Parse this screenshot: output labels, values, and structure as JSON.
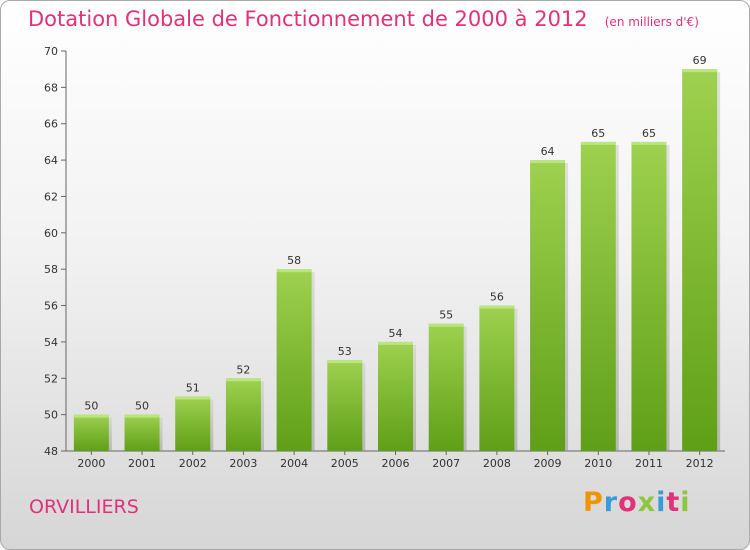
{
  "header": {
    "title": "Dotation Globale de Fonctionnement de 2000 à 2012",
    "unit": "(en milliers d'€)"
  },
  "footer": {
    "town": "ORVILLIERS",
    "logo": "Proxiti"
  },
  "colors": {
    "title": "#e0317a",
    "bar_top": "#9ed14f",
    "bar_bottom": "#5f9f17"
  },
  "chart_data": {
    "type": "bar",
    "title": "Dotation Globale de Fonctionnement de 2000 à 2012",
    "categories": [
      "2000",
      "2001",
      "2002",
      "2003",
      "2004",
      "2005",
      "2006",
      "2007",
      "2008",
      "2009",
      "2010",
      "2011",
      "2012"
    ],
    "values": [
      50,
      50,
      51,
      52,
      58,
      53,
      54,
      55,
      56,
      64,
      65,
      65,
      69
    ],
    "ylim": [
      48,
      70
    ],
    "yticks": [
      48,
      50,
      52,
      54,
      56,
      58,
      60,
      62,
      64,
      66,
      68,
      70
    ],
    "grid": false,
    "data_labels": true
  }
}
